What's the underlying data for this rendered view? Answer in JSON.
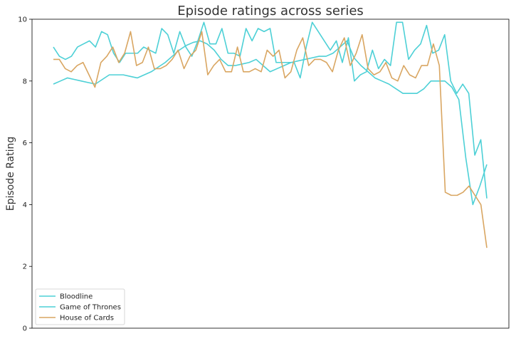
{
  "chart_data": {
    "type": "line",
    "title": "Episode ratings across series",
    "xlabel": "",
    "ylabel": "Episode Rating",
    "ylim": [
      0,
      10
    ],
    "yticks": [
      0,
      2,
      4,
      6,
      8,
      10
    ],
    "x_ticks_shown": false,
    "grid": false,
    "legend_position": "lower-left",
    "series": [
      {
        "name": "Bloodline",
        "color": "#4dd0d6",
        "values": [
          7.9,
          8.0,
          8.1,
          8.05,
          8.0,
          7.95,
          7.9,
          8.05,
          8.2,
          8.2,
          8.2,
          8.15,
          8.1,
          8.2,
          8.3,
          8.45,
          8.6,
          8.8,
          9.0,
          9.15,
          9.25,
          9.3,
          9.2,
          9.0,
          8.7,
          8.5,
          8.5,
          8.55,
          8.6,
          8.7,
          8.5,
          8.3,
          8.4,
          8.5,
          8.6,
          8.65,
          8.7,
          8.75,
          8.8,
          8.8,
          8.9,
          9.1,
          9.3,
          8.75,
          8.5,
          8.3,
          8.1,
          8.0,
          7.9,
          7.75,
          7.6,
          7.6,
          7.6,
          7.75,
          8.0,
          8.0,
          8.0,
          7.8,
          7.4,
          5.5,
          4.0,
          4.6,
          5.3
        ]
      },
      {
        "name": "Game of Thrones",
        "color": "#4dd0d6",
        "values": [
          9.1,
          8.8,
          8.7,
          8.8,
          9.1,
          9.2,
          9.3,
          9.1,
          9.6,
          9.5,
          8.9,
          8.6,
          8.9,
          8.9,
          8.9,
          9.1,
          9.0,
          8.9,
          9.7,
          9.5,
          8.9,
          9.6,
          9.1,
          8.8,
          9.3,
          9.9,
          9.2,
          9.2,
          9.7,
          8.9,
          8.9,
          8.8,
          9.7,
          9.3,
          9.7,
          9.6,
          9.7,
          8.6,
          8.6,
          8.6,
          8.6,
          8.1,
          9.1,
          9.9,
          9.6,
          9.3,
          9.0,
          9.3,
          8.6,
          9.4,
          8.0,
          8.2,
          8.3,
          9.0,
          8.4,
          8.7,
          8.5,
          9.9,
          9.9,
          8.7,
          9.0,
          9.2,
          9.8,
          8.9,
          9.0,
          9.5,
          8.0,
          7.6,
          7.9,
          7.6,
          5.6,
          6.1,
          4.2
        ]
      },
      {
        "name": "House of Cards",
        "color": "#d9a662",
        "values": [
          8.7,
          8.7,
          8.4,
          8.3,
          8.5,
          8.6,
          8.2,
          7.8,
          8.6,
          8.8,
          9.1,
          8.6,
          8.9,
          9.6,
          8.5,
          8.6,
          9.1,
          8.4,
          8.4,
          8.5,
          8.7,
          9.0,
          8.4,
          8.8,
          9.0,
          9.6,
          8.2,
          8.5,
          8.7,
          8.3,
          8.3,
          9.1,
          8.3,
          8.3,
          8.4,
          8.3,
          9.0,
          8.8,
          9.0,
          8.1,
          8.3,
          9.0,
          9.4,
          8.5,
          8.7,
          8.7,
          8.6,
          8.3,
          9.0,
          9.4,
          8.5,
          8.9,
          9.5,
          8.4,
          8.2,
          8.3,
          8.6,
          8.1,
          8.0,
          8.5,
          8.2,
          8.1,
          8.5,
          8.5,
          9.2,
          8.5,
          4.4,
          4.3,
          4.3,
          4.4,
          4.6,
          4.3,
          4.0,
          2.6
        ]
      }
    ]
  }
}
